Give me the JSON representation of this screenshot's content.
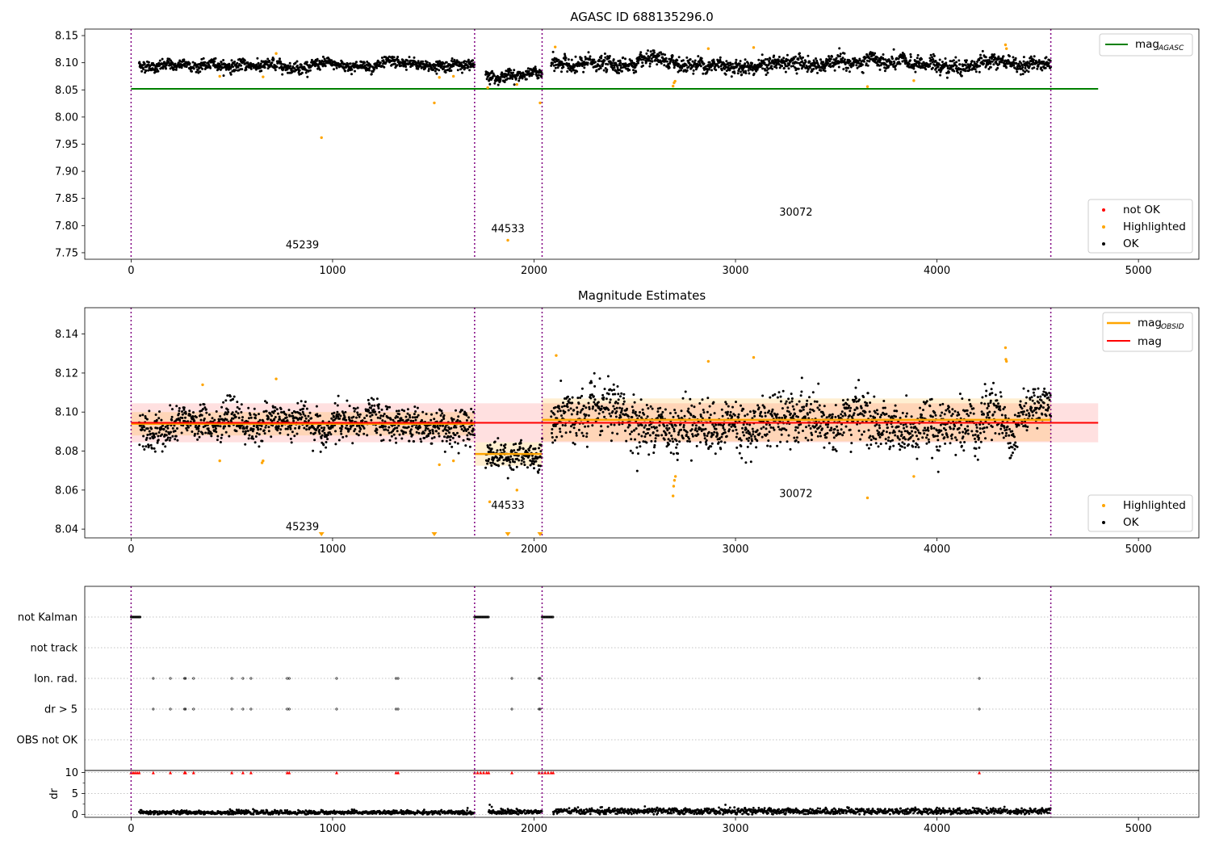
{
  "chart_data": [
    {
      "type": "scatter",
      "title": "AGASC ID 688135296.0",
      "xlim": [
        -230,
        5300
      ],
      "ylim": [
        7.738,
        8.162
      ],
      "x_ticks": [
        0,
        1000,
        2000,
        3000,
        4000,
        5000
      ],
      "y_ticks": [
        7.75,
        7.8,
        7.85,
        7.9,
        7.95,
        8.0,
        8.05,
        8.1,
        8.15
      ],
      "obsid_boundaries": [
        0,
        1705,
        2040,
        4565
      ],
      "obsid_labels": [
        {
          "text": "45239",
          "x": 850,
          "y": 7.758
        },
        {
          "text": "44533",
          "x": 1870,
          "y": 7.788
        },
        {
          "text": "30072",
          "x": 3300,
          "y": 7.818
        }
      ],
      "lines": [
        {
          "name": "mag",
          "sub": "AGASC",
          "y": 8.052,
          "x_range": [
            0,
            4800
          ],
          "color": "#008000"
        }
      ],
      "series": [
        {
          "name": "not OK",
          "color": "#ff0000"
        },
        {
          "name": "Highlighted",
          "color": "#ffa500"
        },
        {
          "name": "OK",
          "color": "#000000"
        }
      ],
      "segments": [
        {
          "x_start": 40,
          "x_end": 1705,
          "mean": 8.095,
          "spread": 0.008
        },
        {
          "x_start": 1760,
          "x_end": 2040,
          "mean": 8.079,
          "spread": 0.008
        },
        {
          "x_start": 2085,
          "x_end": 4565,
          "mean": 8.097,
          "spread": 0.011
        }
      ],
      "highlighted_points": [
        {
          "x": 440,
          "y": 8.075
        },
        {
          "x": 655,
          "y": 8.074
        },
        {
          "x": 720,
          "y": 8.117
        },
        {
          "x": 945,
          "y": 7.962
        },
        {
          "x": 1505,
          "y": 8.026
        },
        {
          "x": 1530,
          "y": 8.073
        },
        {
          "x": 1600,
          "y": 8.075
        },
        {
          "x": 1770,
          "y": 8.054
        },
        {
          "x": 1870,
          "y": 7.773
        },
        {
          "x": 1915,
          "y": 8.06
        },
        {
          "x": 2030,
          "y": 8.026
        },
        {
          "x": 2105,
          "y": 8.129
        },
        {
          "x": 2690,
          "y": 8.057
        },
        {
          "x": 2695,
          "y": 8.063
        },
        {
          "x": 2700,
          "y": 8.066
        },
        {
          "x": 2865,
          "y": 8.126
        },
        {
          "x": 3090,
          "y": 8.128
        },
        {
          "x": 3655,
          "y": 8.056
        },
        {
          "x": 3885,
          "y": 8.067
        },
        {
          "x": 4340,
          "y": 8.133
        },
        {
          "x": 4345,
          "y": 8.126
        }
      ],
      "legends": [
        {
          "position": "upper-right",
          "entries": [
            {
              "label": "mag",
              "sub": "AGASC"
            }
          ]
        },
        {
          "position": "lower-right",
          "entries": [
            {
              "label": "not OK"
            },
            {
              "label": "Highlighted"
            },
            {
              "label": "OK"
            }
          ]
        }
      ]
    },
    {
      "type": "scatter",
      "title": "Magnitude Estimates",
      "xlim": [
        -230,
        5300
      ],
      "ylim": [
        8.0355,
        8.1535
      ],
      "x_ticks": [
        0,
        1000,
        2000,
        3000,
        4000,
        5000
      ],
      "y_ticks": [
        8.04,
        8.06,
        8.08,
        8.1,
        8.12,
        8.14
      ],
      "obsid_boundaries": [
        0,
        1705,
        2040,
        4565
      ],
      "obsid_labels": [
        {
          "text": "45239",
          "x": 850,
          "y": 8.0395
        },
        {
          "text": "44533",
          "x": 1870,
          "y": 8.0505
        },
        {
          "text": "30072",
          "x": 3300,
          "y": 8.0565
        }
      ],
      "mag": {
        "y": 8.0945,
        "band": [
          8.0845,
          8.1045
        ],
        "x_range": [
          0,
          4800
        ],
        "color": "#ff0000"
      },
      "mag_obsid": [
        {
          "x_start": 0,
          "x_end": 1705,
          "y": 8.094,
          "band": [
            8.088,
            8.1
          ]
        },
        {
          "x_start": 1705,
          "x_end": 2040,
          "y": 8.0785,
          "band": [
            8.0725,
            8.0845
          ]
        },
        {
          "x_start": 2040,
          "x_end": 4565,
          "y": 8.096,
          "band": [
            8.085,
            8.107
          ]
        }
      ],
      "segments": [
        {
          "x_start": 40,
          "x_end": 1705,
          "mean": 8.094,
          "spread": 0.007
        },
        {
          "x_start": 1760,
          "x_end": 2040,
          "mean": 8.078,
          "spread": 0.006
        },
        {
          "x_start": 2085,
          "x_end": 4565,
          "mean": 8.095,
          "spread": 0.01
        }
      ],
      "highlighted_points": [
        {
          "x": 355,
          "y": 8.114
        },
        {
          "x": 440,
          "y": 8.075
        },
        {
          "x": 650,
          "y": 8.074
        },
        {
          "x": 655,
          "y": 8.075
        },
        {
          "x": 720,
          "y": 8.117
        },
        {
          "x": 1530,
          "y": 8.073
        },
        {
          "x": 1600,
          "y": 8.075
        },
        {
          "x": 1780,
          "y": 8.054
        },
        {
          "x": 1915,
          "y": 8.06
        },
        {
          "x": 2110,
          "y": 8.129
        },
        {
          "x": 2690,
          "y": 8.057
        },
        {
          "x": 2693,
          "y": 8.062
        },
        {
          "x": 2697,
          "y": 8.065
        },
        {
          "x": 2702,
          "y": 8.067
        },
        {
          "x": 2865,
          "y": 8.126
        },
        {
          "x": 3090,
          "y": 8.128
        },
        {
          "x": 3655,
          "y": 8.056
        },
        {
          "x": 3885,
          "y": 8.067
        },
        {
          "x": 4340,
          "y": 8.133
        },
        {
          "x": 4342,
          "y": 8.127
        },
        {
          "x": 4345,
          "y": 8.126
        }
      ],
      "below_range_markers": [
        {
          "x": 945
        },
        {
          "x": 1505
        },
        {
          "x": 1870
        },
        {
          "x": 2030
        }
      ],
      "series": [
        {
          "name": "Highlighted",
          "color": "#ffa500"
        },
        {
          "name": "OK",
          "color": "#000000"
        }
      ],
      "legends": [
        {
          "position": "upper-right",
          "entries": [
            {
              "label": "mag",
              "sub": "OBSID"
            },
            {
              "label": "mag"
            }
          ]
        },
        {
          "position": "lower-right",
          "entries": [
            {
              "label": "Highlighted"
            },
            {
              "label": "OK"
            }
          ]
        }
      ]
    },
    {
      "type": "scatter",
      "xlim": [
        -230,
        5300
      ],
      "x_ticks": [
        0,
        1000,
        2000,
        3000,
        4000,
        5000
      ],
      "obsid_boundaries": [
        0,
        1705,
        2040,
        4565
      ],
      "flag_rows": [
        "not Kalman",
        "not track",
        "Ion. rad.",
        "dr > 5",
        "OBS not OK"
      ],
      "flags": {
        "not Kalman": [
          [
            0,
            45
          ],
          [
            1705,
            1775
          ],
          [
            2040,
            2095
          ]
        ],
        "not track": [],
        "Ion. rad.": [
          110,
          195,
          265,
          270,
          310,
          500,
          555,
          595,
          775,
          785,
          1020,
          1315,
          1325,
          1890,
          2025,
          2030,
          4210
        ],
        "dr > 5": [
          110,
          195,
          265,
          270,
          310,
          500,
          555,
          595,
          775,
          785,
          1020,
          1315,
          1325,
          1890,
          2025,
          2030,
          4210
        ],
        "OBS not OK": []
      },
      "dr_panel": {
        "ylabel": "dr",
        "ylim": [
          -0.7,
          10.5
        ],
        "y_ticks": [
          0,
          5,
          10
        ],
        "clip_value": 10,
        "clipped_x": [
          0,
          10,
          20,
          30,
          40,
          110,
          195,
          265,
          270,
          310,
          500,
          555,
          595,
          775,
          785,
          1020,
          1315,
          1325,
          1705,
          1720,
          1735,
          1750,
          1765,
          1775,
          1890,
          2025,
          2040,
          2055,
          2070,
          2085,
          2095,
          4210
        ],
        "segments": [
          {
            "x_start": 40,
            "x_end": 1705,
            "mean": 0.45,
            "spread": 0.28
          },
          {
            "x_start": 1775,
            "x_end": 2040,
            "mean": 0.6,
            "spread": 0.35
          },
          {
            "x_start": 2095,
            "x_end": 4565,
            "mean": 0.75,
            "spread": 0.4
          }
        ],
        "extra_points": [
          {
            "x": 1780,
            "y": 2.3
          },
          {
            "x": 1790,
            "y": 1.8
          },
          {
            "x": 2550,
            "y": 1.9
          },
          {
            "x": 2610,
            "y": 1.6
          },
          {
            "x": 2950,
            "y": 2.3
          },
          {
            "x": 3555,
            "y": 1.7
          },
          {
            "x": 4335,
            "y": 1.8
          },
          {
            "x": 4000,
            "y": 1.6
          }
        ]
      }
    }
  ]
}
